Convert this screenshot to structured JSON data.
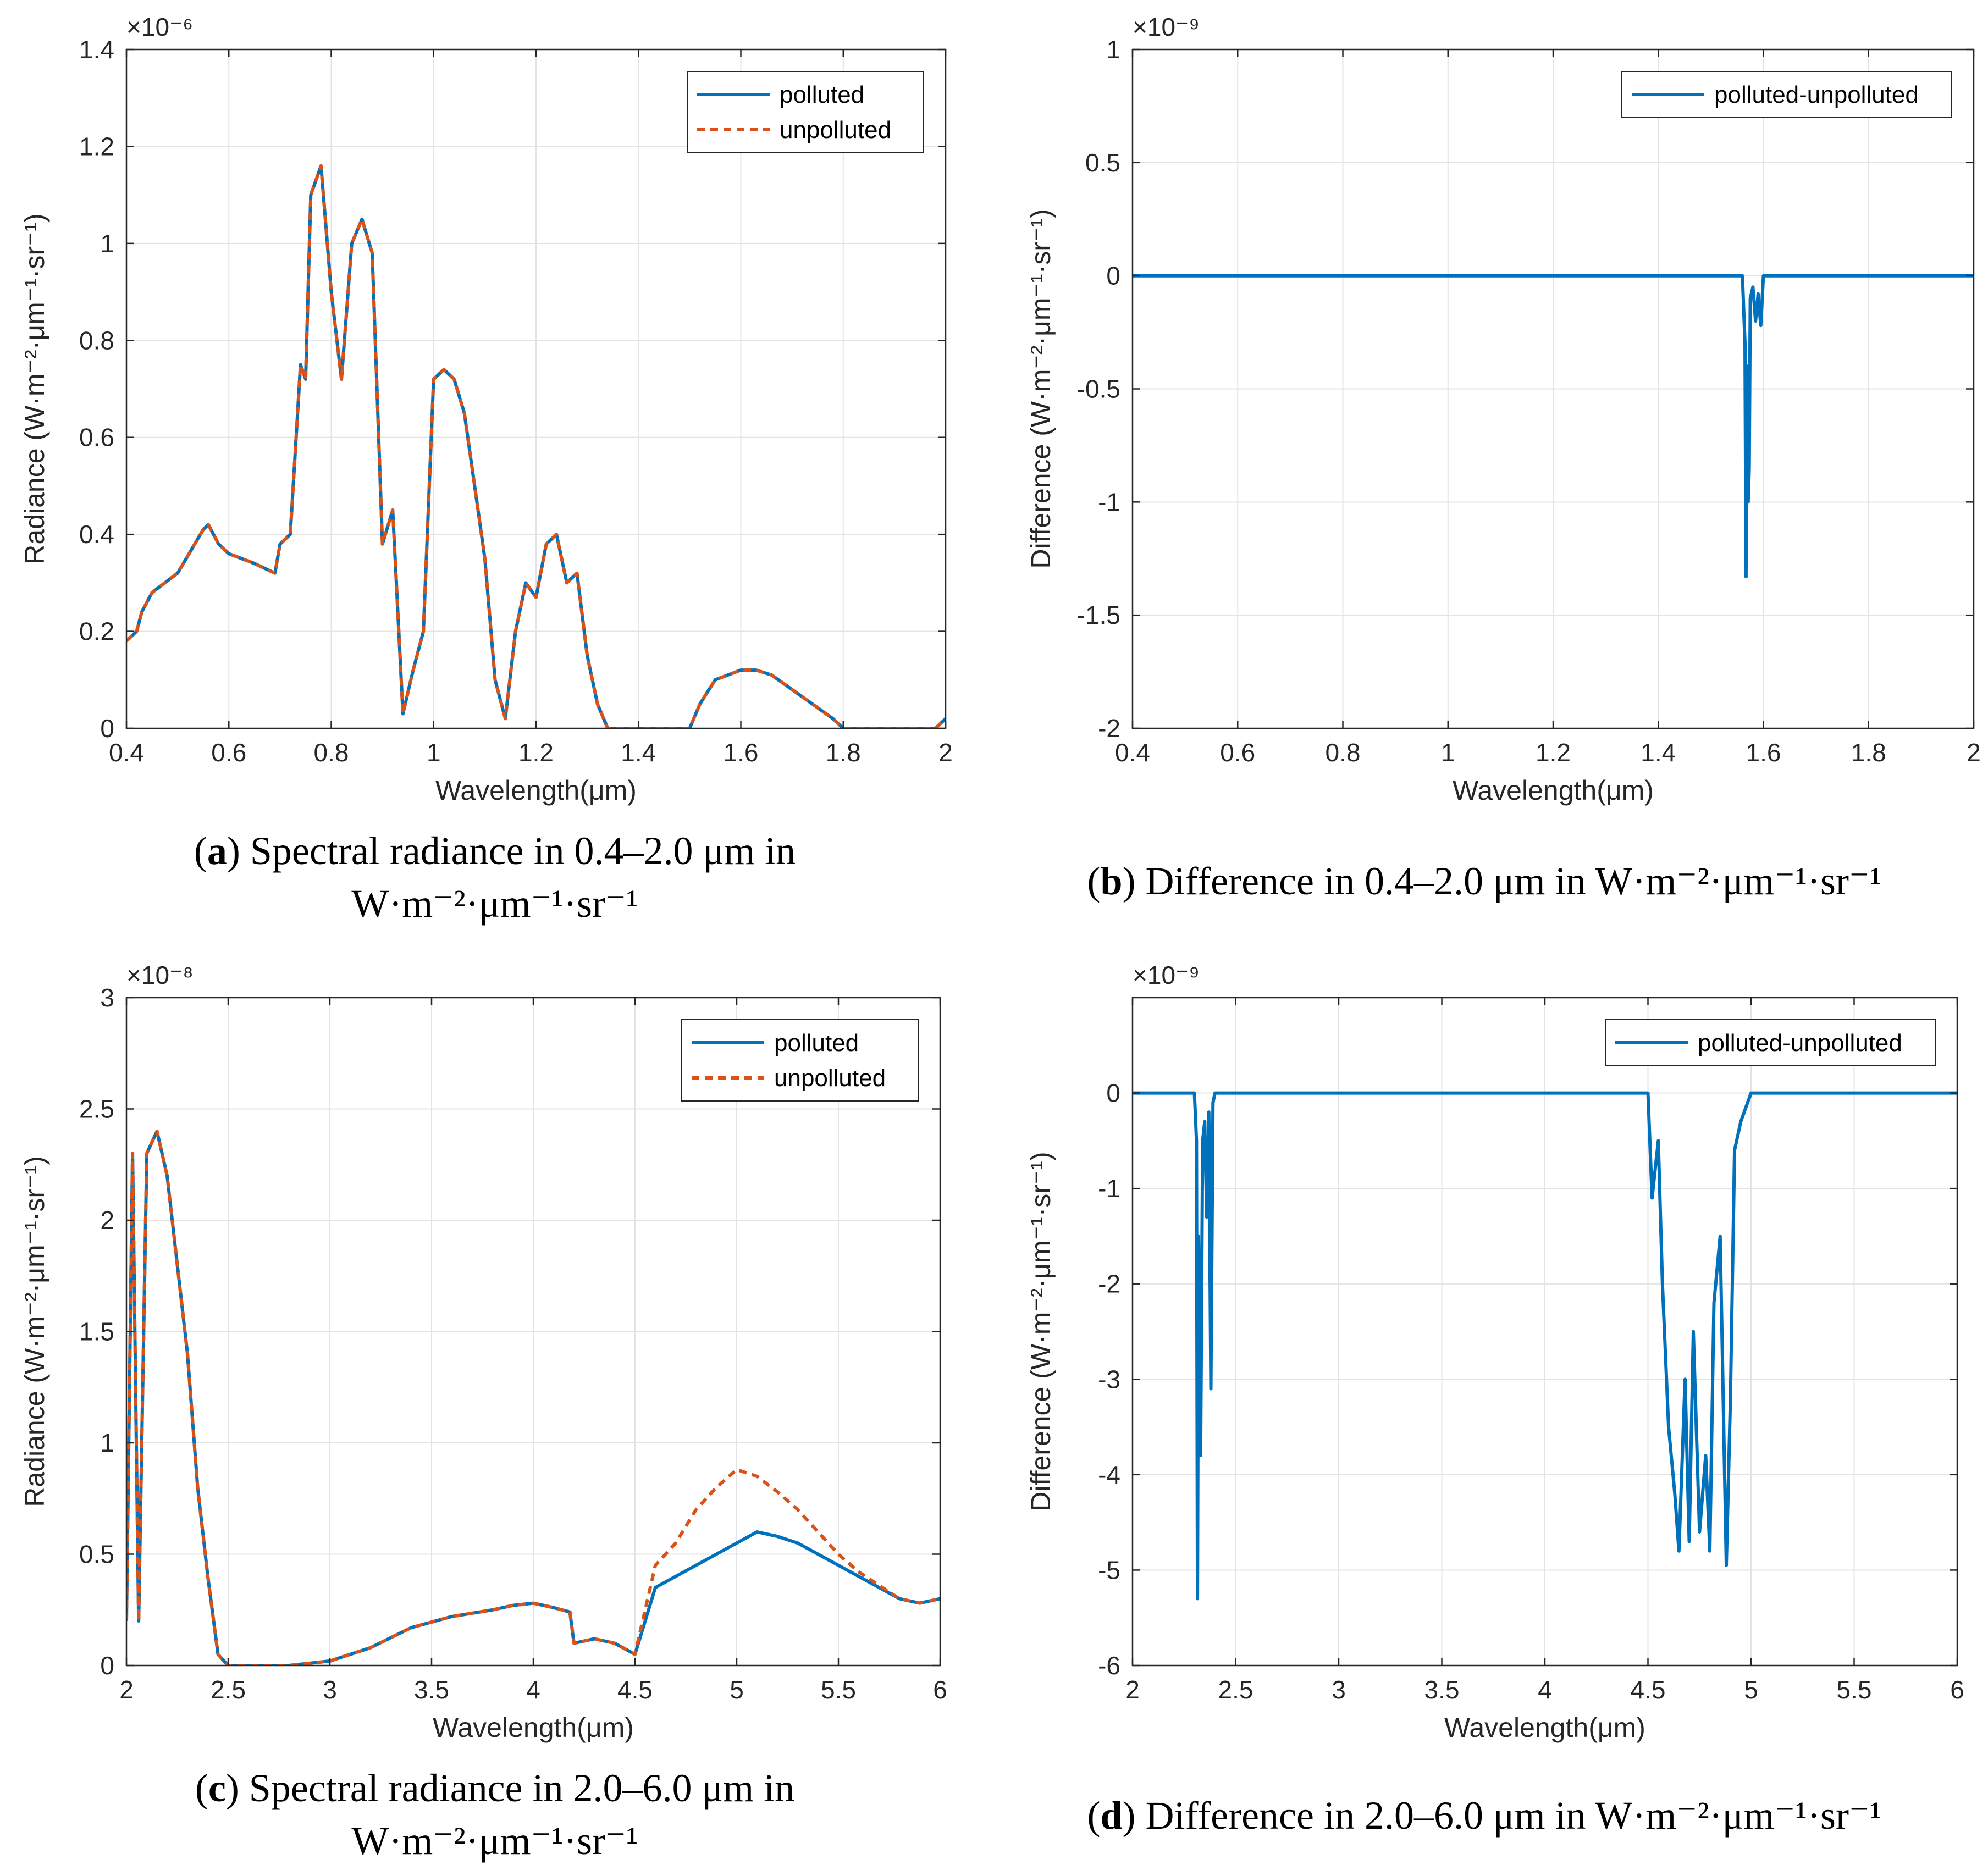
{
  "colors": {
    "polluted": "#0072BD",
    "unpolluted": "#D95319",
    "grid": "#e3e3e3",
    "axis": "#262626"
  },
  "captions": {
    "a": {
      "letter": "a",
      "text": "Spectral radiance in 0.4–2.0 μm in",
      "line2": "W·m⁻²·μm⁻¹·sr⁻¹"
    },
    "b": {
      "letter": "b",
      "text": "Difference in 0.4–2.0 μm in W·m⁻²·μm⁻¹·sr⁻¹"
    },
    "c": {
      "letter": "c",
      "text": "Spectral radiance in 2.0–6.0 μm in",
      "line2": "W·m⁻²·μm⁻¹·sr⁻¹"
    },
    "d": {
      "letter": "d",
      "text": "Difference in 2.0–6.0 μm in W·m⁻²·μm⁻¹·sr⁻¹"
    }
  },
  "chart_data": [
    {
      "id": "a",
      "type": "line",
      "xlabel": "Wavelength(μm)",
      "ylabel": "Radiance (W·m⁻²·μm⁻¹·sr⁻¹)",
      "exponent": "×10⁻⁶",
      "xlim": [
        0.4,
        2.0
      ],
      "ylim": [
        0,
        1.4
      ],
      "xticks": [
        0.4,
        0.6,
        0.8,
        1.0,
        1.2,
        1.4,
        1.6,
        1.8,
        2.0
      ],
      "xticklabels": [
        "0.4",
        "0.6",
        "0.8",
        "1",
        "1.2",
        "1.4",
        "1.6",
        "1.8",
        "2"
      ],
      "yticks": [
        0,
        0.2,
        0.4,
        0.6,
        0.8,
        1.0,
        1.2,
        1.4
      ],
      "yticklabels": [
        "0",
        "0.2",
        "0.4",
        "0.6",
        "0.8",
        "1",
        "1.2",
        "1.4"
      ],
      "legend": [
        "polluted",
        "unpolluted"
      ],
      "legend_position": "top-right",
      "series": [
        {
          "name": "polluted",
          "x": [
            0.4,
            0.42,
            0.43,
            0.45,
            0.5,
            0.55,
            0.56,
            0.58,
            0.6,
            0.65,
            0.69,
            0.7,
            0.72,
            0.74,
            0.75,
            0.76,
            0.77,
            0.78,
            0.8,
            0.82,
            0.84,
            0.86,
            0.88,
            0.9,
            0.92,
            0.94,
            0.96,
            0.98,
            1.0,
            1.02,
            1.04,
            1.06,
            1.08,
            1.1,
            1.12,
            1.14,
            1.16,
            1.18,
            1.2,
            1.22,
            1.24,
            1.26,
            1.28,
            1.3,
            1.32,
            1.34,
            1.36,
            1.4,
            1.45,
            1.5,
            1.52,
            1.55,
            1.6,
            1.63,
            1.66,
            1.7,
            1.74,
            1.78,
            1.8,
            1.85,
            1.9,
            1.95,
            1.98,
            2.0
          ],
          "y": [
            0.18,
            0.2,
            0.24,
            0.28,
            0.32,
            0.41,
            0.42,
            0.38,
            0.36,
            0.34,
            0.32,
            0.38,
            0.4,
            0.75,
            0.72,
            1.1,
            1.13,
            1.16,
            0.9,
            0.72,
            1.0,
            1.05,
            0.98,
            0.38,
            0.45,
            0.03,
            0.12,
            0.2,
            0.72,
            0.74,
            0.72,
            0.65,
            0.5,
            0.35,
            0.1,
            0.02,
            0.2,
            0.3,
            0.27,
            0.38,
            0.4,
            0.3,
            0.32,
            0.15,
            0.05,
            0.0,
            0.0,
            0.0,
            0.0,
            0.0,
            0.05,
            0.1,
            0.12,
            0.12,
            0.11,
            0.08,
            0.05,
            0.02,
            0.0,
            0.0,
            0.0,
            0.0,
            0.0,
            0.02
          ]
        },
        {
          "name": "unpolluted",
          "x": [
            0.4,
            0.42,
            0.43,
            0.45,
            0.5,
            0.55,
            0.56,
            0.58,
            0.6,
            0.65,
            0.69,
            0.7,
            0.72,
            0.74,
            0.75,
            0.76,
            0.77,
            0.78,
            0.8,
            0.82,
            0.84,
            0.86,
            0.88,
            0.9,
            0.92,
            0.94,
            0.96,
            0.98,
            1.0,
            1.02,
            1.04,
            1.06,
            1.08,
            1.1,
            1.12,
            1.14,
            1.16,
            1.18,
            1.2,
            1.22,
            1.24,
            1.26,
            1.28,
            1.3,
            1.32,
            1.34,
            1.36,
            1.4,
            1.45,
            1.5,
            1.52,
            1.55,
            1.6,
            1.63,
            1.66,
            1.7,
            1.74,
            1.78,
            1.8,
            1.85,
            1.9,
            1.95,
            1.98,
            2.0
          ],
          "y": [
            0.18,
            0.2,
            0.24,
            0.28,
            0.32,
            0.41,
            0.42,
            0.38,
            0.36,
            0.34,
            0.32,
            0.38,
            0.4,
            0.75,
            0.72,
            1.1,
            1.13,
            1.16,
            0.9,
            0.72,
            1.0,
            1.05,
            0.98,
            0.38,
            0.45,
            0.03,
            0.12,
            0.2,
            0.72,
            0.74,
            0.72,
            0.65,
            0.5,
            0.35,
            0.1,
            0.02,
            0.2,
            0.3,
            0.27,
            0.38,
            0.4,
            0.3,
            0.32,
            0.15,
            0.05,
            0.0,
            0.0,
            0.0,
            0.0,
            0.0,
            0.05,
            0.1,
            0.12,
            0.12,
            0.11,
            0.08,
            0.05,
            0.02,
            0.0,
            0.0,
            0.0,
            0.0,
            0.0,
            0.02
          ]
        }
      ]
    },
    {
      "id": "b",
      "type": "line",
      "xlabel": "Wavelength(μm)",
      "ylabel": "Difference (W·m⁻²·μm⁻¹·sr⁻¹)",
      "exponent": "×10⁻⁹",
      "xlim": [
        0.4,
        2.0
      ],
      "ylim": [
        -2.0,
        1.0
      ],
      "xticks": [
        0.4,
        0.6,
        0.8,
        1.0,
        1.2,
        1.4,
        1.6,
        1.8,
        2.0
      ],
      "xticklabels": [
        "0.4",
        "0.6",
        "0.8",
        "1",
        "1.2",
        "1.4",
        "1.6",
        "1.8",
        "2"
      ],
      "yticks": [
        -2.0,
        -1.5,
        -1.0,
        -0.5,
        0,
        0.5,
        1.0
      ],
      "yticklabels": [
        "-2",
        "-1.5",
        "-1",
        "-0.5",
        "0",
        "0.5",
        "1"
      ],
      "legend": [
        "polluted-unpolluted"
      ],
      "legend_position": "top-right",
      "series": [
        {
          "name": "polluted-unpolluted",
          "x": [
            0.4,
            1.56,
            1.565,
            1.567,
            1.569,
            1.571,
            1.573,
            1.575,
            1.58,
            1.585,
            1.59,
            1.595,
            1.6,
            2.0
          ],
          "y": [
            0,
            0,
            -0.3,
            -1.33,
            -0.4,
            -1.0,
            -0.85,
            -0.1,
            -0.05,
            -0.2,
            -0.08,
            -0.22,
            0,
            0
          ]
        }
      ]
    },
    {
      "id": "c",
      "type": "line",
      "xlabel": "Wavelength(μm)",
      "ylabel": "Radiance (W·m⁻²·μm⁻¹·sr⁻¹)",
      "exponent": "×10⁻⁸",
      "xlim": [
        2.0,
        6.0
      ],
      "ylim": [
        0,
        3.0
      ],
      "xticks": [
        2.0,
        2.5,
        3.0,
        3.5,
        4.0,
        4.5,
        5.0,
        5.5,
        6.0
      ],
      "xticklabels": [
        "2",
        "2.5",
        "3",
        "3.5",
        "4",
        "4.5",
        "5",
        "5.5",
        "6"
      ],
      "yticks": [
        0,
        0.5,
        1.0,
        1.5,
        2.0,
        2.5,
        3.0
      ],
      "yticklabels": [
        "0",
        "0.5",
        "1",
        "1.5",
        "2",
        "2.5",
        "3"
      ],
      "legend": [
        "polluted",
        "unpolluted"
      ],
      "legend_position": "top-right",
      "series": [
        {
          "name": "polluted",
          "x": [
            2.0,
            2.03,
            2.06,
            2.1,
            2.15,
            2.2,
            2.25,
            2.3,
            2.35,
            2.4,
            2.45,
            2.5,
            2.6,
            2.8,
            3.0,
            3.2,
            3.4,
            3.6,
            3.8,
            3.9,
            4.0,
            4.1,
            4.18,
            4.2,
            4.3,
            4.4,
            4.5,
            4.6,
            4.7,
            4.8,
            4.9,
            5.0,
            5.1,
            5.2,
            5.3,
            5.4,
            5.5,
            5.6,
            5.7,
            5.8,
            5.9,
            6.0
          ],
          "y": [
            0.2,
            2.3,
            0.2,
            2.3,
            2.4,
            2.2,
            1.8,
            1.4,
            0.8,
            0.4,
            0.05,
            0.0,
            0.0,
            0.0,
            0.02,
            0.08,
            0.17,
            0.22,
            0.25,
            0.27,
            0.28,
            0.26,
            0.24,
            0.1,
            0.12,
            0.1,
            0.05,
            0.35,
            0.4,
            0.45,
            0.5,
            0.55,
            0.6,
            0.58,
            0.55,
            0.5,
            0.45,
            0.4,
            0.35,
            0.3,
            0.28,
            0.3
          ]
        },
        {
          "name": "unpolluted",
          "x": [
            2.0,
            2.03,
            2.06,
            2.1,
            2.15,
            2.2,
            2.25,
            2.3,
            2.35,
            2.4,
            2.45,
            2.5,
            2.6,
            2.8,
            3.0,
            3.2,
            3.4,
            3.6,
            3.8,
            3.9,
            4.0,
            4.1,
            4.18,
            4.2,
            4.3,
            4.4,
            4.5,
            4.6,
            4.7,
            4.8,
            4.9,
            5.0,
            5.1,
            5.2,
            5.3,
            5.4,
            5.5,
            5.6,
            5.7,
            5.8,
            5.9,
            6.0
          ],
          "y": [
            0.2,
            2.3,
            0.2,
            2.3,
            2.4,
            2.2,
            1.8,
            1.4,
            0.8,
            0.4,
            0.05,
            0.0,
            0.0,
            0.0,
            0.02,
            0.08,
            0.17,
            0.22,
            0.25,
            0.27,
            0.28,
            0.26,
            0.24,
            0.1,
            0.12,
            0.1,
            0.05,
            0.45,
            0.55,
            0.7,
            0.8,
            0.88,
            0.85,
            0.78,
            0.7,
            0.6,
            0.5,
            0.42,
            0.36,
            0.3,
            0.28,
            0.3
          ]
        }
      ]
    },
    {
      "id": "d",
      "type": "line",
      "xlabel": "Wavelength(μm)",
      "ylabel": "Difference (W·m⁻²·μm⁻¹·sr⁻¹)",
      "exponent": "×10⁻⁹",
      "xlim": [
        2.0,
        6.0
      ],
      "ylim": [
        -6.0,
        1.0
      ],
      "xticks": [
        2.0,
        2.5,
        3.0,
        3.5,
        4.0,
        4.5,
        5.0,
        5.5,
        6.0
      ],
      "xticklabels": [
        "2",
        "2.5",
        "3",
        "3.5",
        "4",
        "4.5",
        "5",
        "5.5",
        "6"
      ],
      "yticks": [
        -6,
        -5,
        -4,
        -3,
        -2,
        -1,
        0
      ],
      "yticklabels": [
        "-6",
        "-5",
        "-4",
        "-3",
        "-2",
        "-1",
        "0"
      ],
      "legend": [
        "polluted-unpolluted"
      ],
      "legend_position": "top-right",
      "series": [
        {
          "name": "polluted-unpolluted",
          "x": [
            2.0,
            2.3,
            2.31,
            2.315,
            2.32,
            2.33,
            2.34,
            2.35,
            2.36,
            2.37,
            2.38,
            2.39,
            2.4,
            4.5,
            4.52,
            4.55,
            4.57,
            4.6,
            4.63,
            4.65,
            4.68,
            4.7,
            4.72,
            4.75,
            4.78,
            4.8,
            4.82,
            4.85,
            4.88,
            4.9,
            4.92,
            4.95,
            5.0,
            6.0
          ],
          "y": [
            0,
            0,
            -0.5,
            -5.3,
            -1.5,
            -3.8,
            -0.5,
            -0.3,
            -1.3,
            -0.2,
            -3.1,
            -0.1,
            0,
            0,
            -1.1,
            -0.5,
            -2.0,
            -3.5,
            -4.2,
            -4.8,
            -3.0,
            -4.7,
            -2.5,
            -4.6,
            -3.8,
            -4.8,
            -2.2,
            -1.5,
            -4.95,
            -3.2,
            -0.6,
            -0.3,
            0,
            0
          ]
        }
      ]
    }
  ]
}
